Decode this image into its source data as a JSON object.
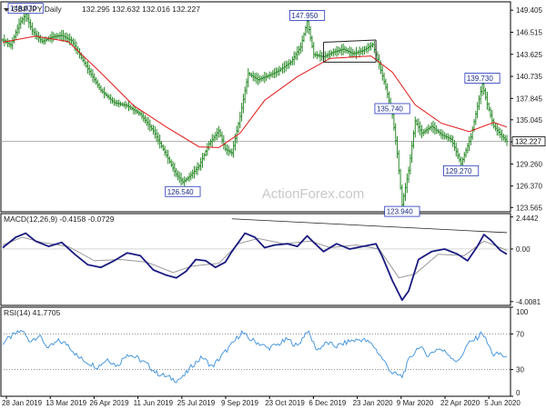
{
  "chart_data": [
    {
      "type": "ohlc",
      "title": "GBPJPY Daily",
      "ohlc_readout": [
        "132.295",
        "132.632",
        "132.016",
        "132.227"
      ],
      "current_price": "132.227",
      "watermark": "ActionForex.com",
      "ylim": [
        123.0,
        150.5
      ],
      "y_ticks": [
        "149.405",
        "146.515",
        "143.625",
        "140.735",
        "137.845",
        "135.045",
        "132.155",
        "129.260",
        "126.370",
        "123.565"
      ],
      "x_ticks": [
        "28 Jan 2019",
        "13 Mar 2019",
        "26 Apr 2019",
        "11 Jun 2019",
        "25 Jul 2019",
        "9 Sep 2019",
        "23 Oct 2019",
        "6 Dec 2019",
        "23 Jan 2020",
        "9 Mar 2020",
        "22 Apr 2020",
        "5 Jun 2020"
      ],
      "price_path": [
        [
          0,
          145.5
        ],
        [
          5,
          144.8
        ],
        [
          10,
          147.6
        ],
        [
          14,
          148.87
        ],
        [
          18,
          146.7
        ],
        [
          24,
          145.3
        ],
        [
          30,
          145.9
        ],
        [
          36,
          146.1
        ],
        [
          42,
          145.4
        ],
        [
          48,
          143.2
        ],
        [
          54,
          141.0
        ],
        [
          60,
          138.9
        ],
        [
          68,
          137.3
        ],
        [
          76,
          136.9
        ],
        [
          84,
          135.8
        ],
        [
          92,
          133.6
        ],
        [
          100,
          130.4
        ],
        [
          106,
          127.9
        ],
        [
          110,
          126.9
        ],
        [
          114,
          127.6
        ],
        [
          120,
          129.0
        ],
        [
          126,
          131.9
        ],
        [
          132,
          133.6
        ],
        [
          136,
          131.2
        ],
        [
          140,
          130.7
        ],
        [
          145,
          135.5
        ],
        [
          150,
          141.1
        ],
        [
          156,
          140.3
        ],
        [
          162,
          140.8
        ],
        [
          168,
          141.4
        ],
        [
          176,
          142.6
        ],
        [
          182,
          144.6
        ],
        [
          186,
          147.95
        ],
        [
          190,
          143.6
        ],
        [
          196,
          143.3
        ],
        [
          202,
          143.9
        ],
        [
          208,
          144.3
        ],
        [
          214,
          143.7
        ],
        [
          220,
          144.1
        ],
        [
          226,
          144.9
        ],
        [
          230,
          142.3
        ],
        [
          234,
          139.3
        ],
        [
          238,
          135.74
        ],
        [
          241,
          130.6
        ],
        [
          244,
          123.94
        ],
        [
          248,
          128.4
        ],
        [
          252,
          134.9
        ],
        [
          256,
          133.3
        ],
        [
          262,
          134.2
        ],
        [
          268,
          133.1
        ],
        [
          274,
          132.5
        ],
        [
          280,
          129.27
        ],
        [
          286,
          132.8
        ],
        [
          290,
          136.8
        ],
        [
          293,
          139.73
        ],
        [
          296,
          137.1
        ],
        [
          300,
          134.2
        ],
        [
          305,
          132.9
        ],
        [
          308,
          132.227
        ]
      ],
      "moving_average": [
        [
          0,
          145.2
        ],
        [
          20,
          146.0
        ],
        [
          40,
          145.3
        ],
        [
          60,
          141.2
        ],
        [
          80,
          136.9
        ],
        [
          100,
          134.1
        ],
        [
          120,
          131.5
        ],
        [
          132,
          131.4
        ],
        [
          145,
          133.3
        ],
        [
          160,
          137.6
        ],
        [
          180,
          140.7
        ],
        [
          200,
          143.1
        ],
        [
          225,
          143.4
        ],
        [
          238,
          141.3
        ],
        [
          252,
          137.0
        ],
        [
          268,
          134.6
        ],
        [
          285,
          133.5
        ],
        [
          300,
          134.7
        ],
        [
          308,
          134.1
        ]
      ],
      "price_labels": [
        "148.870",
        "126.540",
        "147.950",
        "135.740",
        "123.940",
        "129.270",
        "139.730"
      ],
      "price_label_values": [
        [
          14,
          148.87,
          "top"
        ],
        [
          110,
          126.54,
          "bottom"
        ],
        [
          186,
          147.95,
          "top"
        ],
        [
          238,
          135.74,
          "top"
        ],
        [
          244,
          123.94,
          "bottom"
        ],
        [
          280,
          129.27,
          "bottom"
        ],
        [
          293,
          139.73,
          "top"
        ]
      ],
      "channel": [
        [
          196,
          145.2
        ],
        [
          228,
          145.5
        ],
        [
          196,
          142.6
        ],
        [
          228,
          142.6
        ]
      ],
      "colors": {
        "price": "#2a8a2a",
        "moving_average": "#e01818",
        "frame": "#000000",
        "label_box": "#2233bb",
        "label_bg": "#ffffff",
        "hline": "#999999"
      }
    },
    {
      "type": "line",
      "title": "MACD(12,26,9) -0.4158 -0.0729",
      "ylim": [
        -4.3,
        2.7
      ],
      "y_ticks": [
        "2.4442",
        "0.00",
        "-4.0081"
      ],
      "macd": [
        [
          0,
          0.1
        ],
        [
          8,
          0.9
        ],
        [
          14,
          1.2
        ],
        [
          20,
          0.6
        ],
        [
          28,
          0.2
        ],
        [
          36,
          0.5
        ],
        [
          44,
          -0.4
        ],
        [
          52,
          -1.2
        ],
        [
          60,
          -1.4
        ],
        [
          68,
          -0.9
        ],
        [
          76,
          -0.3
        ],
        [
          84,
          -0.5
        ],
        [
          92,
          -1.6
        ],
        [
          100,
          -2.0
        ],
        [
          106,
          -2.2
        ],
        [
          112,
          -1.7
        ],
        [
          118,
          -0.8
        ],
        [
          124,
          -0.9
        ],
        [
          130,
          -1.4
        ],
        [
          136,
          -1.0
        ],
        [
          140,
          -0.2
        ],
        [
          148,
          1.2
        ],
        [
          154,
          0.9
        ],
        [
          160,
          0.1
        ],
        [
          166,
          0.3
        ],
        [
          174,
          0.4
        ],
        [
          180,
          0.2
        ],
        [
          186,
          1.0
        ],
        [
          190,
          0.5
        ],
        [
          196,
          -0.2
        ],
        [
          204,
          0.4
        ],
        [
          212,
          0.0
        ],
        [
          220,
          0.2
        ],
        [
          228,
          0.4
        ],
        [
          232,
          -0.6
        ],
        [
          238,
          -2.4
        ],
        [
          244,
          -3.9
        ],
        [
          248,
          -3.2
        ],
        [
          254,
          -0.8
        ],
        [
          262,
          -0.2
        ],
        [
          270,
          0.0
        ],
        [
          278,
          -0.4
        ],
        [
          284,
          -0.9
        ],
        [
          290,
          0.2
        ],
        [
          294,
          1.1
        ],
        [
          298,
          0.7
        ],
        [
          304,
          -0.1
        ],
        [
          308,
          -0.4
        ]
      ],
      "signal": [
        [
          0,
          0.3
        ],
        [
          12,
          0.9
        ],
        [
          24,
          0.5
        ],
        [
          40,
          0.2
        ],
        [
          56,
          -0.9
        ],
        [
          72,
          -0.8
        ],
        [
          88,
          -1.0
        ],
        [
          104,
          -1.8
        ],
        [
          116,
          -1.3
        ],
        [
          132,
          -1.1
        ],
        [
          144,
          0.4
        ],
        [
          156,
          0.8
        ],
        [
          172,
          0.4
        ],
        [
          188,
          0.6
        ],
        [
          200,
          0.1
        ],
        [
          216,
          0.3
        ],
        [
          230,
          0.0
        ],
        [
          242,
          -2.2
        ],
        [
          252,
          -1.9
        ],
        [
          266,
          -0.4
        ],
        [
          282,
          -0.5
        ],
        [
          294,
          0.6
        ],
        [
          308,
          -0.1
        ]
      ],
      "trendline": [
        [
          140,
          2.3
        ],
        [
          308,
          1.25
        ]
      ],
      "colors": {
        "macd": "#1a1a80",
        "signal": "#999999",
        "trendline": "#222222"
      }
    },
    {
      "type": "line",
      "title": "RSI(14) 41.7705",
      "ylim": [
        0,
        100
      ],
      "y_ticks": [
        "100",
        "70",
        "30",
        "0"
      ],
      "levels": [
        70,
        30
      ],
      "rsi": [
        [
          0,
          60
        ],
        [
          6,
          68
        ],
        [
          12,
          74
        ],
        [
          16,
          62
        ],
        [
          22,
          68
        ],
        [
          28,
          54
        ],
        [
          34,
          62
        ],
        [
          40,
          58
        ],
        [
          46,
          44
        ],
        [
          52,
          38
        ],
        [
          58,
          33
        ],
        [
          64,
          42
        ],
        [
          70,
          34
        ],
        [
          76,
          48
        ],
        [
          82,
          43
        ],
        [
          88,
          36
        ],
        [
          94,
          26
        ],
        [
          100,
          22
        ],
        [
          106,
          18
        ],
        [
          110,
          21
        ],
        [
          116,
          35
        ],
        [
          122,
          44
        ],
        [
          128,
          33
        ],
        [
          134,
          46
        ],
        [
          140,
          58
        ],
        [
          146,
          72
        ],
        [
          150,
          65
        ],
        [
          156,
          60
        ],
        [
          162,
          54
        ],
        [
          168,
          58
        ],
        [
          174,
          64
        ],
        [
          180,
          56
        ],
        [
          186,
          74
        ],
        [
          192,
          52
        ],
        [
          198,
          60
        ],
        [
          204,
          56
        ],
        [
          212,
          62
        ],
        [
          220,
          64
        ],
        [
          226,
          58
        ],
        [
          232,
          42
        ],
        [
          238,
          26
        ],
        [
          244,
          22
        ],
        [
          248,
          40
        ],
        [
          254,
          56
        ],
        [
          260,
          46
        ],
        [
          266,
          54
        ],
        [
          272,
          48
        ],
        [
          278,
          38
        ],
        [
          284,
          58
        ],
        [
          290,
          66
        ],
        [
          293,
          72
        ],
        [
          296,
          60
        ],
        [
          300,
          46
        ],
        [
          304,
          48
        ],
        [
          308,
          41.8
        ]
      ],
      "colors": {
        "rsi": "#3a8fdc",
        "levels": "#888888"
      }
    }
  ]
}
